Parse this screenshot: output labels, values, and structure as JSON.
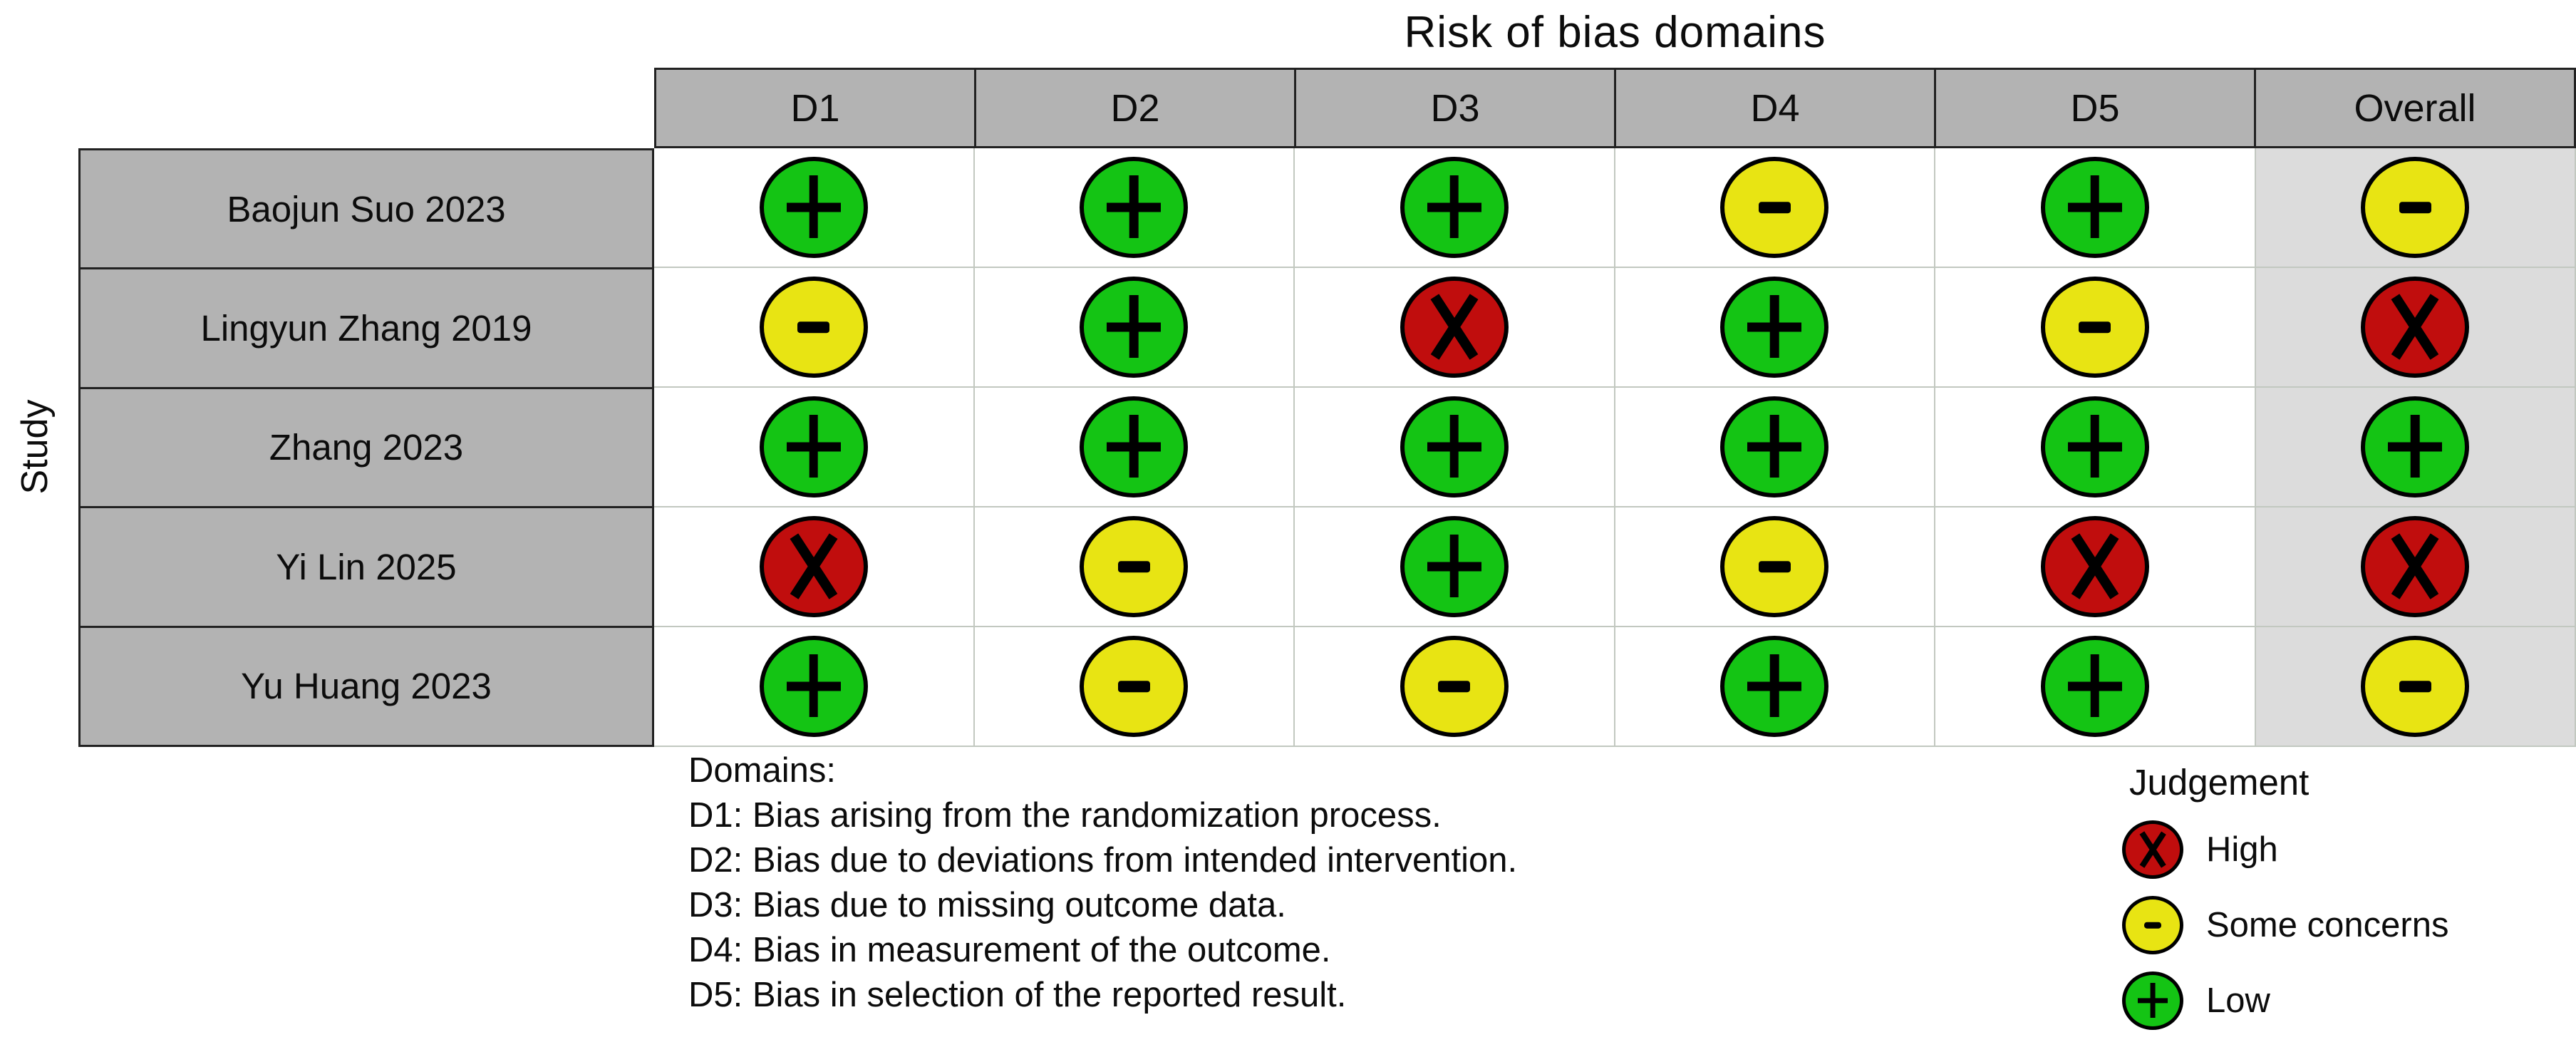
{
  "title": "Risk of bias domains",
  "row_axis_label": "Study",
  "chart_data": {
    "type": "table",
    "title": "Risk of bias domains",
    "row_axis_label": "Study",
    "columns": [
      "D1",
      "D2",
      "D3",
      "D4",
      "D5",
      "Overall"
    ],
    "judgement_symbols": {
      "low": "+",
      "some_concerns": "-",
      "high": "x"
    },
    "rows": [
      {
        "study": "Baojun Suo 2023",
        "judgements": [
          "low",
          "low",
          "low",
          "some_concerns",
          "low",
          "some_concerns"
        ]
      },
      {
        "study": "Lingyun Zhang 2019",
        "judgements": [
          "some_concerns",
          "low",
          "high",
          "low",
          "some_concerns",
          "high"
        ]
      },
      {
        "study": "Zhang 2023",
        "judgements": [
          "low",
          "low",
          "low",
          "low",
          "low",
          "low"
        ]
      },
      {
        "study": "Yi Lin 2025",
        "judgements": [
          "high",
          "some_concerns",
          "low",
          "some_concerns",
          "high",
          "high"
        ]
      },
      {
        "study": "Yu Huang 2023",
        "judgements": [
          "low",
          "some_concerns",
          "some_concerns",
          "low",
          "low",
          "some_concerns"
        ]
      }
    ]
  },
  "domains_note": {
    "heading": "Domains:",
    "items": [
      "D1: Bias arising from the randomization process.",
      "D2: Bias due to deviations from intended intervention.",
      "D3: Bias due to missing outcome data.",
      "D4: Bias in measurement of the outcome.",
      "D5: Bias in selection of the reported result."
    ]
  },
  "legend": {
    "title": "Judgement",
    "items": [
      {
        "label": "High",
        "level": "high"
      },
      {
        "label": "Some concerns",
        "level": "some_concerns"
      },
      {
        "label": "Low",
        "level": "low"
      }
    ]
  },
  "colors": {
    "low": "#14c414",
    "some_concerns": "#e8e413",
    "high": "#c00d0d",
    "symbol": "#000000",
    "header_fill": "#b3b3b3",
    "study_fill": "#b3b3b3",
    "dark_grid_line": "#222222",
    "body_grid_line": "#c2c8c0",
    "overall_column_fill": "#dcdcdc"
  }
}
